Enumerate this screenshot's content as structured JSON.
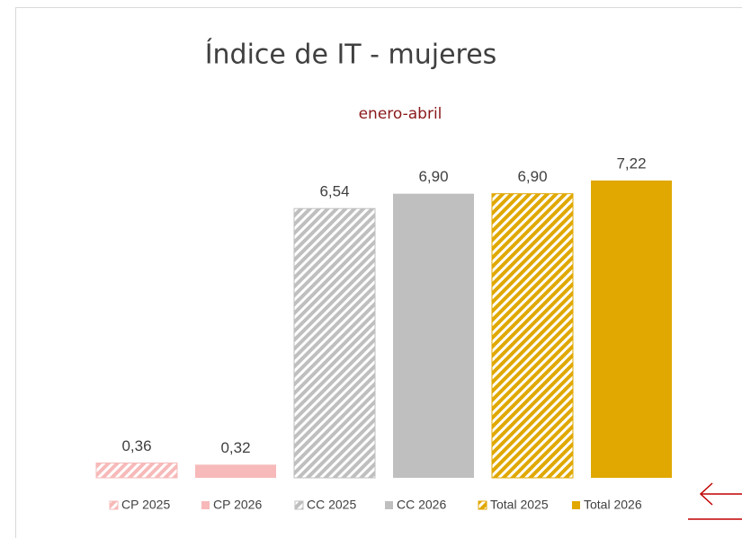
{
  "chart_data": {
    "type": "bar",
    "title": "Índice de IT - mujeres",
    "subtitle": "enero-abril",
    "series": [
      {
        "name": "CP 2025",
        "color": "#f7b9b9",
        "hatched": true,
        "values": [
          0.36
        ],
        "value_labels": [
          "0,36"
        ]
      },
      {
        "name": "CP 2026",
        "color": "#f7b9b9",
        "hatched": false,
        "values": [
          0.32
        ],
        "value_labels": [
          "0,32"
        ]
      },
      {
        "name": "CC 2025",
        "color": "#bfbfbf",
        "hatched": true,
        "values": [
          6.54
        ],
        "value_labels": [
          "6,54"
        ]
      },
      {
        "name": "CC 2026",
        "color": "#bfbfbf",
        "hatched": false,
        "values": [
          6.9
        ],
        "value_labels": [
          "6,90"
        ]
      },
      {
        "name": "Total 2025",
        "color": "#e0a800",
        "hatched": true,
        "values": [
          6.9
        ],
        "value_labels": [
          "6,90"
        ]
      },
      {
        "name": "Total 2026",
        "color": "#e0a800",
        "hatched": false,
        "values": [
          7.22
        ],
        "value_labels": [
          "7,22"
        ]
      }
    ],
    "legend": "bottom"
  }
}
